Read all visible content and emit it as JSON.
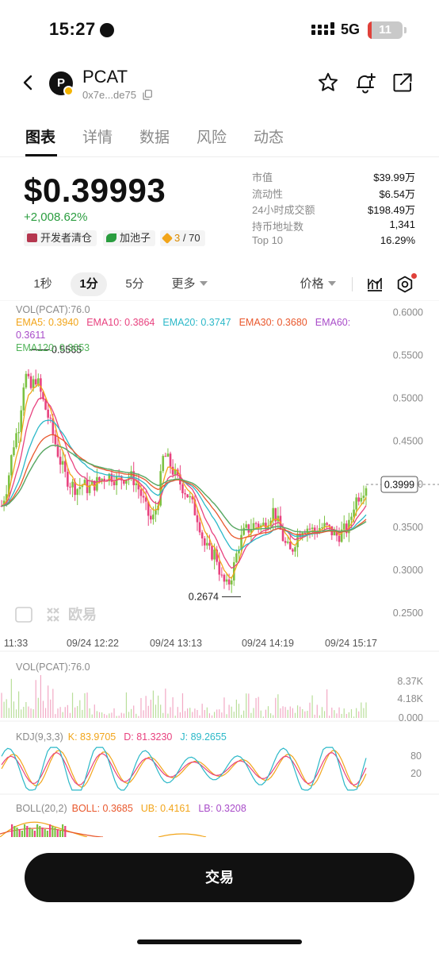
{
  "status_bar": {
    "time": "15:27",
    "network": "5G",
    "battery": "11",
    "battery_level": 0.11
  },
  "header": {
    "symbol": "PCAT",
    "avatar_letter": "P",
    "address": "0x7e...de75"
  },
  "tabs": [
    {
      "label": "图表",
      "active": true
    },
    {
      "label": "详情",
      "active": false
    },
    {
      "label": "数据",
      "active": false
    },
    {
      "label": "风险",
      "active": false
    },
    {
      "label": "动态",
      "active": false
    }
  ],
  "price": {
    "value": "$0.39993",
    "change": "+2,008.62%"
  },
  "tags": [
    {
      "label": "开发者清仓"
    },
    {
      "label": "加池子"
    },
    {
      "label": "3",
      "total": "/ 70"
    }
  ],
  "stats": [
    {
      "label": "市值",
      "value": "$39.99万"
    },
    {
      "label": "流动性",
      "value": "$6.54万"
    },
    {
      "label": "24小时成交额",
      "value": "$198.49万"
    },
    {
      "label": "持币地址数",
      "value": "1,341"
    },
    {
      "label": "Top 10",
      "value": "16.29%"
    }
  ],
  "toolbar": {
    "intervals": [
      {
        "label": "1秒",
        "active": false
      },
      {
        "label": "1分",
        "active": true
      },
      {
        "label": "5分",
        "active": false
      }
    ],
    "more": "更多",
    "price_type": "价格"
  },
  "legend": {
    "vol": "VOL(PCAT):76.0",
    "ema": [
      {
        "label": "EMA5: 0.3940",
        "color": "#f2a51a"
      },
      {
        "label": "EMA10: 0.3864",
        "color": "#e8427f"
      },
      {
        "label": "EMA20: 0.3747",
        "color": "#2bb8c8"
      },
      {
        "label": "EMA30: 0.3680",
        "color": "#e9582d"
      },
      {
        "label": "EMA60: 0.3611",
        "color": "#a94cc9"
      },
      {
        "label": "EMA120: 0.3653",
        "color": "#53b45b"
      }
    ],
    "vol_pane": "VOL(PCAT):76.0",
    "kdj_name": "KDJ(9,3,3)",
    "kdj": [
      {
        "label": "K: 83.9705",
        "color": "#f2a51a"
      },
      {
        "label": "D: 81.3230",
        "color": "#e8427f"
      },
      {
        "label": "J: 89.2655",
        "color": "#2bb8c8"
      }
    ],
    "boll_name": "BOLL(20,2)",
    "boll": [
      {
        "label": "BOLL: 0.3685",
        "color": "#e9582d"
      },
      {
        "label": "UB: 0.4161",
        "color": "#f2a51a"
      },
      {
        "label": "LB: 0.3208",
        "color": "#a94cc9"
      }
    ]
  },
  "chart_data": {
    "type": "candlestick",
    "price_axis": {
      "ticks": [
        "0.6000",
        "0.5500",
        "0.5000",
        "0.4500",
        "0.4000",
        "0.3500",
        "0.3000",
        "0.2500"
      ],
      "range": [
        0.24,
        0.605
      ]
    },
    "time_axis": [
      "11:33",
      "09/24 12:22",
      "09/24 13:13",
      "09/24 14:19",
      "09/24 15:17"
    ],
    "high_label": "0.5565",
    "low_label": "0.2674",
    "current_price": "0.3999",
    "vol_axis": [
      "8.37K",
      "4.18K",
      "0.000"
    ],
    "kdj_axis": [
      "80",
      "20"
    ],
    "watermark": "欧易",
    "close_path": [
      0.375,
      0.4,
      0.445,
      0.47,
      0.53,
      0.51,
      0.525,
      0.5,
      0.48,
      0.455,
      0.43,
      0.41,
      0.4,
      0.395,
      0.4,
      0.395,
      0.4,
      0.405,
      0.41,
      0.41,
      0.405,
      0.408,
      0.41,
      0.405,
      0.39,
      0.37,
      0.355,
      0.38,
      0.435,
      0.425,
      0.41,
      0.4,
      0.39,
      0.375,
      0.36,
      0.33,
      0.32,
      0.32,
      0.29,
      0.28,
      0.3,
      0.33,
      0.345,
      0.35,
      0.355,
      0.35,
      0.36,
      0.37,
      0.35,
      0.33,
      0.32,
      0.34,
      0.35,
      0.35,
      0.345,
      0.35,
      0.35,
      0.345,
      0.34,
      0.345,
      0.35,
      0.38,
      0.39,
      0.4
    ]
  },
  "trade_button": "交易",
  "colors": {
    "up": "#7cc243",
    "down": "#e8427f",
    "accent": "#111111"
  }
}
